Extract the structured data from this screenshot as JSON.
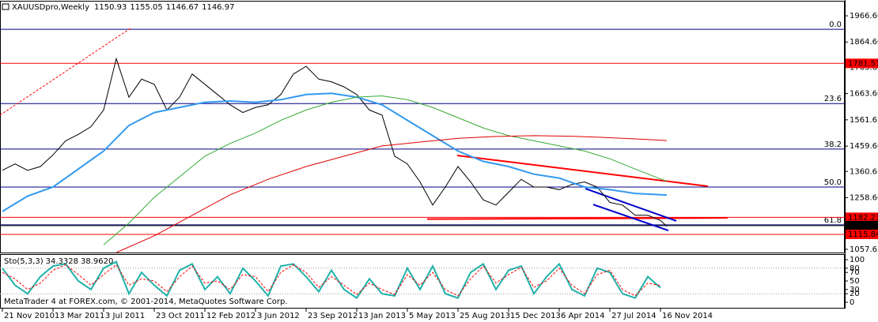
{
  "chart_data": [
    {
      "type": "line",
      "title": "XAUUSDpro,Weekly",
      "ohlc": [
        1150.93,
        1155.05,
        1146.67,
        1146.97
      ],
      "xlim": [
        -0.75,
        266.25
      ],
      "ylim": [
        1045,
        2022
      ],
      "xticks": [
        {
          "value": 0,
          "label": "21 Nov 2010"
        },
        {
          "value": 16,
          "label": "13 Mar 2011"
        },
        {
          "value": 32,
          "label": "3 Jul 2011"
        },
        {
          "value": 48,
          "label": "23 Oct 2011"
        },
        {
          "value": 64,
          "label": "12 Feb 2012"
        },
        {
          "value": 80,
          "label": "3 Jun 2012"
        },
        {
          "value": 96,
          "label": "23 Sep 2012"
        },
        {
          "value": 112,
          "label": "13 Jan 2013"
        },
        {
          "value": 128,
          "label": "5 May 2013"
        },
        {
          "value": 144,
          "label": "25 Aug 2013"
        },
        {
          "value": 160,
          "label": "15 Dec 2013"
        },
        {
          "value": 176,
          "label": "6 Apr 2014"
        },
        {
          "value": 192,
          "label": "27 Jul 2014"
        },
        {
          "value": 208,
          "label": "16 Nov 2014"
        }
      ],
      "yticks": [
        {
          "value": 1966.6,
          "label": "1966.60"
        },
        {
          "value": 1864.6,
          "label": "1864.60"
        },
        1765.65,
        {
          "value": 1663.6,
          "label": "1663.60"
        },
        1561.65,
        {
          "value": 1459.6,
          "label": "1459.60"
        },
        1360.65,
        {
          "value": 1258.6,
          "label": "1258.60"
        },
        1057.65
      ],
      "series": [
        {
          "color": "#000000",
          "x": [
            0,
            4,
            8,
            12,
            16,
            20,
            24,
            28,
            32,
            36,
            40,
            44,
            48,
            52,
            56,
            60,
            64,
            68,
            72,
            76,
            80,
            84,
            88,
            92,
            96,
            100,
            104,
            108,
            112,
            116,
            120,
            124,
            128,
            132,
            136,
            140,
            144,
            148,
            152,
            156,
            160,
            164,
            168,
            172,
            176,
            180,
            184,
            188,
            192,
            196,
            200,
            204,
            208,
            210
          ],
          "values": [
            1365,
            1390,
            1365,
            1380,
            1425,
            1480,
            1505,
            1535,
            1600,
            1800,
            1650,
            1720,
            1700,
            1600,
            1650,
            1740,
            1700,
            1660,
            1620,
            1590,
            1610,
            1620,
            1660,
            1740,
            1770,
            1720,
            1710,
            1690,
            1660,
            1600,
            1580,
            1420,
            1390,
            1320,
            1230,
            1300,
            1380,
            1320,
            1250,
            1230,
            1280,
            1330,
            1300,
            1300,
            1290,
            1310,
            1320,
            1300,
            1240,
            1230,
            1190,
            1190,
            1170,
            1147
          ]
        },
        {
          "color": "#3399ee",
          "x": [
            0,
            8,
            16,
            24,
            32,
            40,
            48,
            56,
            64,
            72,
            80,
            88,
            96,
            104,
            112,
            120,
            128,
            136,
            144,
            152,
            160,
            168,
            176,
            184,
            192,
            200,
            210
          ],
          "values": [
            1205,
            1265,
            1300,
            1370,
            1440,
            1540,
            1590,
            1610,
            1630,
            1635,
            1630,
            1640,
            1660,
            1665,
            1650,
            1620,
            1560,
            1500,
            1440,
            1400,
            1380,
            1350,
            1335,
            1300,
            1290,
            1275,
            1269
          ]
        },
        {
          "color": "#33aa33",
          "x": [
            32,
            40,
            48,
            56,
            64,
            72,
            80,
            88,
            96,
            104,
            112,
            120,
            128,
            136,
            144,
            152,
            160,
            168,
            176,
            184,
            192,
            200,
            210
          ],
          "values": [
            1075,
            1160,
            1260,
            1340,
            1420,
            1470,
            1510,
            1560,
            1600,
            1630,
            1650,
            1655,
            1640,
            1610,
            1570,
            1530,
            1500,
            1480,
            1460,
            1440,
            1410,
            1370,
            1322
          ]
        },
        {
          "color": "#dd0000",
          "x": [
            36,
            48,
            60,
            72,
            84,
            96,
            108,
            120,
            132,
            144,
            156,
            168,
            180,
            192,
            204,
            210
          ],
          "values": [
            1045,
            1110,
            1190,
            1270,
            1330,
            1380,
            1420,
            1460,
            1475,
            1490,
            1497,
            1500,
            1498,
            1492,
            1485,
            1481
          ]
        }
      ],
      "fib_levels": [
        {
          "label": "0.0",
          "value": 1914
        },
        {
          "label": "23.6",
          "value": 1625
        },
        {
          "label": "38.2",
          "value": 1448
        },
        {
          "label": "50.0",
          "value": 1300
        },
        {
          "label": "61.8",
          "value": 1153
        }
      ],
      "fib_color": "#000080",
      "price_levels": [
        {
          "value": 1781.51,
          "color": "#ff0000"
        },
        {
          "value": 1182.23,
          "color": "#ff0000"
        },
        {
          "value": 1149.95,
          "color": "#000000"
        },
        {
          "value": 1115.84,
          "color": "#ff0000"
        }
      ],
      "trendlines": [
        {
          "color": "#ff0000",
          "x": [
            -0.75,
            40.5
          ],
          "y": [
            1580,
            1918
          ],
          "dash": true
        },
        {
          "color": "#ff0000",
          "x": [
            143.75,
            223
          ],
          "y": [
            1423,
            1303
          ]
        },
        {
          "color": "#ff0000",
          "x": [
            134.25,
            229.25
          ],
          "y": [
            1175,
            1180
          ]
        },
        {
          "color": "#0000cc",
          "x": [
            186.75,
            210.5
          ],
          "y": [
            1232,
            1131
          ]
        },
        {
          "color": "#0000cc",
          "x": [
            184.25,
            213
          ],
          "y": [
            1294,
            1168
          ]
        }
      ]
    },
    {
      "type": "line",
      "title": "Sto(5,3,3)",
      "readings": [
        34.3328,
        {
          "value": 38.962,
          "label": "38.9620"
        }
      ],
      "ylim": [
        -13,
        113
      ],
      "yticks": [
        100,
        80,
        70,
        50,
        30,
        20,
        0
      ],
      "levels": [
        20,
        80
      ],
      "x": [
        0,
        4,
        8,
        12,
        16,
        20,
        24,
        28,
        32,
        36,
        40,
        44,
        48,
        52,
        56,
        60,
        64,
        68,
        72,
        76,
        80,
        84,
        88,
        92,
        96,
        100,
        104,
        108,
        112,
        116,
        120,
        124,
        128,
        132,
        136,
        140,
        144,
        148,
        152,
        156,
        160,
        164,
        168,
        172,
        176,
        180,
        184,
        188,
        192,
        196,
        200,
        204,
        208
      ],
      "series": [
        {
          "color": "#20b2aa",
          "values": [
            80,
            40,
            20,
            60,
            85,
            90,
            50,
            30,
            80,
            95,
            20,
            70,
            40,
            15,
            75,
            90,
            30,
            60,
            20,
            80,
            50,
            15,
            85,
            90,
            60,
            25,
            75,
            30,
            10,
            55,
            20,
            15,
            80,
            30,
            85,
            20,
            10,
            70,
            90,
            30,
            75,
            85,
            20,
            60,
            90,
            30,
            15,
            80,
            70,
            20,
            10,
            60,
            34
          ]
        },
        {
          "color": "#ff0000",
          "values": [
            70,
            55,
            30,
            45,
            75,
            88,
            65,
            40,
            65,
            88,
            40,
            55,
            50,
            25,
            60,
            85,
            45,
            50,
            30,
            65,
            60,
            25,
            70,
            88,
            70,
            35,
            60,
            40,
            18,
            45,
            30,
            18,
            65,
            40,
            70,
            30,
            15,
            55,
            85,
            45,
            65,
            82,
            35,
            50,
            80,
            40,
            20,
            65,
            75,
            30,
            15,
            45,
            39
          ],
          "dash": true
        }
      ]
    }
  ],
  "watermark": "MetaTrader 4 at FOREX.com, © 2001-2014, MetaQuotes Software Corp."
}
